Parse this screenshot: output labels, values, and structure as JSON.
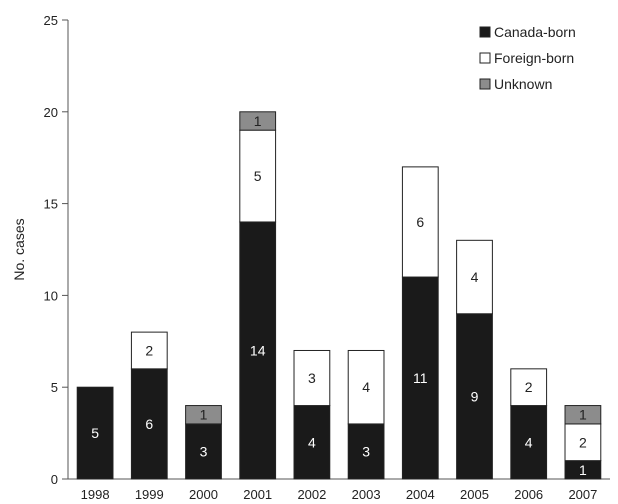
{
  "chart_data": {
    "type": "bar",
    "stacked": true,
    "categories": [
      "1998",
      "1999",
      "2000",
      "2001",
      "2002",
      "2003",
      "2004",
      "2005",
      "2006",
      "2007"
    ],
    "series": [
      {
        "name": "Canada-born",
        "values": [
          5,
          6,
          3,
          14,
          4,
          3,
          11,
          9,
          4,
          1
        ],
        "color": "#1a1a1a"
      },
      {
        "name": "Foreign-born",
        "values": [
          0,
          2,
          0,
          5,
          3,
          4,
          6,
          4,
          2,
          2
        ],
        "color": "#ffffff"
      },
      {
        "name": "Unknown",
        "values": [
          0,
          0,
          1,
          1,
          0,
          0,
          0,
          0,
          0,
          1
        ],
        "color": "#8c8c8c"
      }
    ],
    "title": "",
    "xlabel": "",
    "ylabel": "No. cases",
    "ylim": [
      0,
      25
    ],
    "yticks": [
      0,
      5,
      10,
      15,
      20,
      25
    ],
    "grid": false,
    "legend_position": "top-right"
  }
}
